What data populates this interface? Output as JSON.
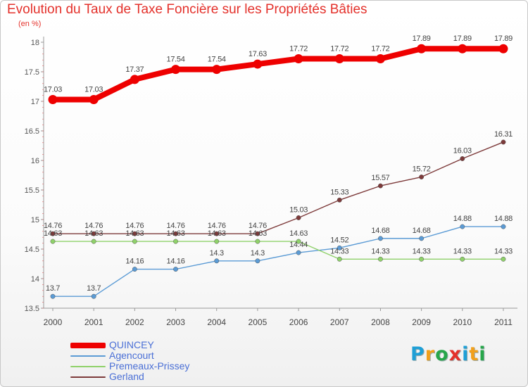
{
  "header": {
    "title": "Evolution du Taux de Taxe Foncière sur les Propriétés Bâties",
    "unit": "(en %)"
  },
  "brand": {
    "logo_letters": [
      "P",
      "r",
      "o",
      "x",
      "i",
      "t",
      "i"
    ],
    "logo_colors": [
      "#1f9fd6",
      "#f2a01c",
      "#27a64a",
      "#e4312b",
      "#1f9fd6",
      "#f2a01c",
      "#27a64a"
    ]
  },
  "chart_data": {
    "type": "line",
    "x": [
      "2000",
      "2001",
      "2002",
      "2003",
      "2004",
      "2005",
      "2006",
      "2007",
      "2008",
      "2009",
      "2010",
      "2011"
    ],
    "ylim": [
      13.5,
      18
    ],
    "yticks": [
      "13.5",
      "14",
      "14.5",
      "15",
      "15.5",
      "16",
      "16.5",
      "17",
      "17.5",
      "18"
    ],
    "grid": false,
    "legend_position": "bottom-left",
    "series": [
      {
        "name": "QUINCEY",
        "color": "#ee0000",
        "values": [
          17.03,
          17.03,
          17.37,
          17.54,
          17.54,
          17.63,
          17.72,
          17.72,
          17.72,
          17.89,
          17.89,
          17.89
        ],
        "labels": [
          "17.03",
          "17.03",
          "17.37",
          "17.54",
          "17.54",
          "17.63",
          "17.72",
          "17.72",
          "17.72",
          "17.89",
          "17.89",
          "17.89"
        ]
      },
      {
        "name": "Agencourt",
        "color": "#5b9bd5",
        "values": [
          13.7,
          13.7,
          14.16,
          14.16,
          14.3,
          14.3,
          14.44,
          14.52,
          14.68,
          14.68,
          14.88,
          14.88
        ],
        "labels": [
          "13.7",
          "13.7",
          "14.16",
          "14.16",
          "14.3",
          "14.3",
          "14.44",
          "14.52",
          "14.68",
          "14.68",
          "14.88",
          "14.88"
        ]
      },
      {
        "name": "Premeaux-Prissey",
        "color": "#8fd16a",
        "values": [
          14.63,
          14.63,
          14.63,
          14.63,
          14.63,
          14.63,
          14.63,
          14.33,
          14.33,
          14.33,
          14.33,
          14.33
        ],
        "labels": [
          "14.63",
          "14.63",
          "14.63",
          "14.63",
          "14.63",
          "14.63",
          "14.63",
          "14.33",
          "14.33",
          "14.33",
          "14.33",
          "14.33"
        ]
      },
      {
        "name": "Gerland",
        "color": "#7d3a3a",
        "values": [
          14.76,
          14.76,
          14.76,
          14.76,
          14.76,
          14.76,
          15.03,
          15.33,
          15.57,
          15.72,
          16.03,
          16.31
        ],
        "labels": [
          "14.76",
          "14.76",
          "14.76",
          "14.76",
          "14.76",
          "14.76",
          "15.03",
          "15.33",
          "15.57",
          "15.72",
          "16.03",
          "16.31"
        ]
      }
    ]
  }
}
